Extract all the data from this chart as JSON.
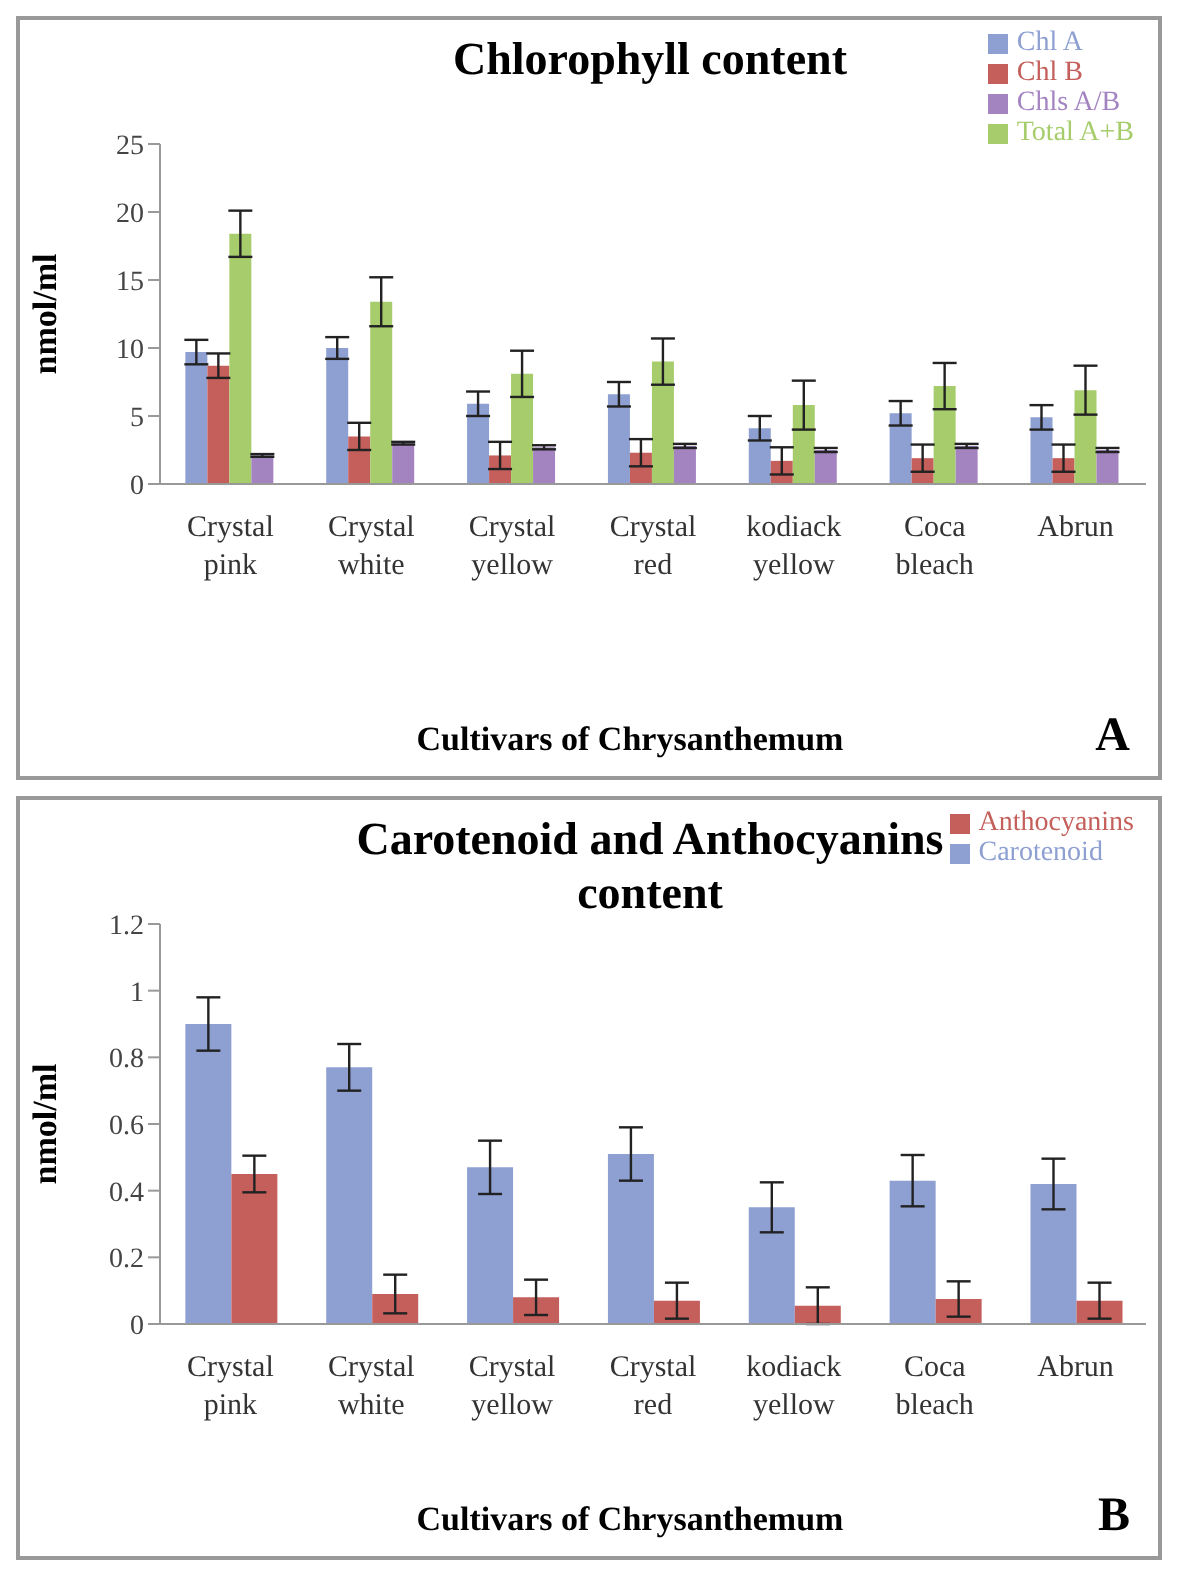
{
  "chart_data": [
    {
      "type": "bar",
      "title": "Chlorophyll content",
      "xlabel": "Cultivars of Chrysanthemum",
      "ylabel": "nmol/ml",
      "annotations": [
        "A"
      ],
      "categories": [
        "Crystal pink",
        "Crystal white",
        "Crystal yellow",
        "Crystal red",
        "kodiack yellow",
        "Coca bleach",
        "Abrun"
      ],
      "series": [
        {
          "name": "Chl A",
          "color": "#8ea0d2",
          "values": [
            9.7,
            10.0,
            5.9,
            6.6,
            4.1,
            5.2,
            4.9
          ],
          "errors": [
            0.9,
            0.8,
            0.9,
            0.9,
            0.9,
            0.9,
            0.9
          ]
        },
        {
          "name": "Chl B",
          "color": "#c45f5b",
          "values": [
            8.7,
            3.5,
            2.1,
            2.3,
            1.7,
            1.9,
            1.9
          ],
          "errors": [
            0.9,
            1.0,
            1.0,
            1.0,
            1.0,
            1.0,
            1.0
          ]
        },
        {
          "name": "Total A+B",
          "color": "#a7cc6b",
          "values": [
            18.4,
            13.4,
            8.1,
            9.0,
            5.8,
            7.2,
            6.9
          ],
          "errors": [
            1.7,
            1.8,
            1.7,
            1.7,
            1.8,
            1.7,
            1.8
          ]
        },
        {
          "name": "Chls A/B",
          "color": "#a484c0",
          "values": [
            2.1,
            3.0,
            2.7,
            2.8,
            2.5,
            2.8,
            2.5
          ],
          "errors": [
            0.1,
            0.1,
            0.15,
            0.15,
            0.15,
            0.15,
            0.15
          ]
        }
      ],
      "ylim": [
        0,
        25
      ],
      "yticks": [
        0,
        5,
        10,
        15,
        20,
        25
      ],
      "grid": false,
      "legend": "top right"
    },
    {
      "type": "bar",
      "title": "Carotenoid and Anthocyanins content",
      "xlabel": "Cultivars of Chrysanthemum",
      "ylabel": "nmol/ml",
      "annotations": [
        "B"
      ],
      "categories": [
        "Crystal pink",
        "Crystal white",
        "Crystal yellow",
        "Crystal red",
        "kodiack yellow",
        "Coca bleach",
        "Abrun"
      ],
      "series": [
        {
          "name": "Carotenoid",
          "color": "#8ea0d2",
          "values": [
            0.9,
            0.77,
            0.47,
            0.51,
            0.35,
            0.43,
            0.42
          ],
          "errors": [
            0.08,
            0.07,
            0.08,
            0.08,
            0.075,
            0.077,
            0.076
          ]
        },
        {
          "name": "Anthocyanins",
          "color": "#c45f5b",
          "values": [
            0.45,
            0.09,
            0.08,
            0.07,
            0.055,
            0.075,
            0.07
          ],
          "errors": [
            0.055,
            0.058,
            0.053,
            0.054,
            0.055,
            0.053,
            0.054
          ]
        }
      ],
      "ylim": [
        0,
        1.2
      ],
      "yticks": [
        0,
        0.2,
        0.4,
        0.6,
        0.8,
        1,
        1.2
      ],
      "grid": false,
      "legend": "top right"
    }
  ]
}
